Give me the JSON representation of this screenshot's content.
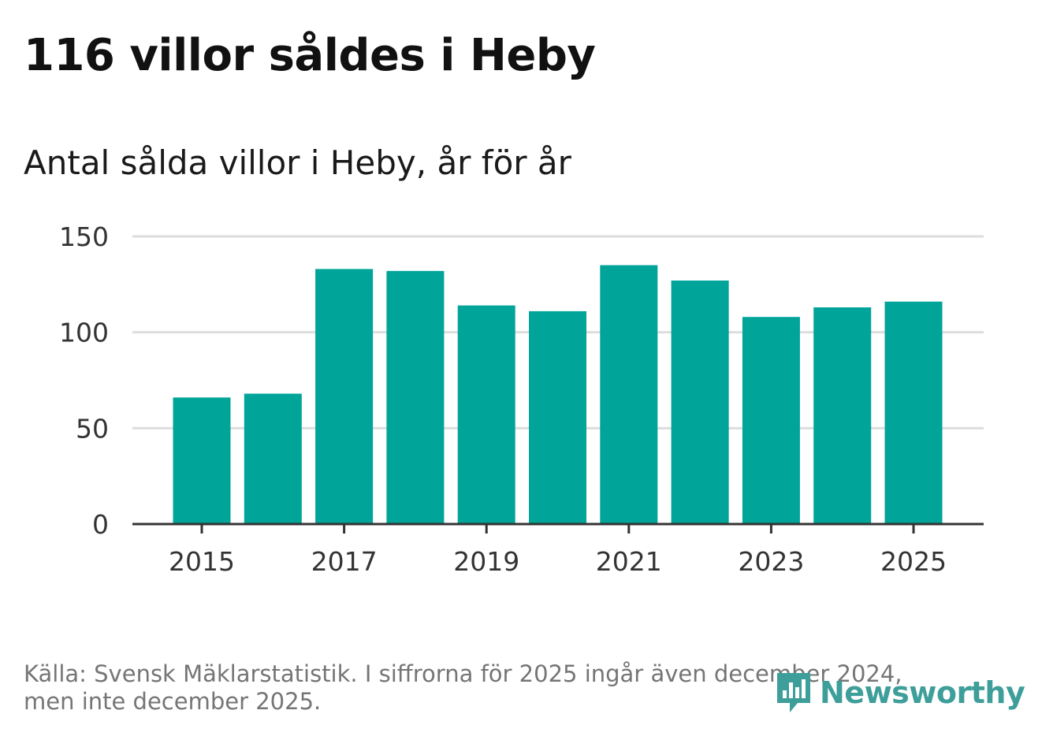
{
  "header": {
    "title": "116 villor såldes i Heby",
    "subtitle": "Antal sålda villor i Heby, år för år"
  },
  "chart_data": {
    "type": "bar",
    "title": "116 villor såldes i Heby",
    "subtitle": "Antal sålda villor i Heby, år för år",
    "categories": [
      2015,
      2016,
      2017,
      2018,
      2019,
      2020,
      2021,
      2022,
      2023,
      2024,
      2025
    ],
    "values": [
      66,
      68,
      133,
      132,
      114,
      111,
      135,
      127,
      108,
      113,
      116
    ],
    "x_tick_labels": [
      "2015",
      "2017",
      "2019",
      "2021",
      "2023",
      "2025"
    ],
    "y_ticks": [
      0,
      50,
      100,
      150
    ],
    "ylim": [
      0,
      150
    ],
    "xlabel": "",
    "ylabel": "",
    "grid": true,
    "bar_color": "#00a499"
  },
  "footer": {
    "source_line1": "Källa: Svensk Mäklarstatistik. I siffrorna för 2025 ingår även december 2024,",
    "source_line2": "men inte december 2025."
  },
  "brand": {
    "name": "Newsworthy",
    "icon": "newsworthy-logo-icon",
    "color": "#3d9e9a"
  }
}
